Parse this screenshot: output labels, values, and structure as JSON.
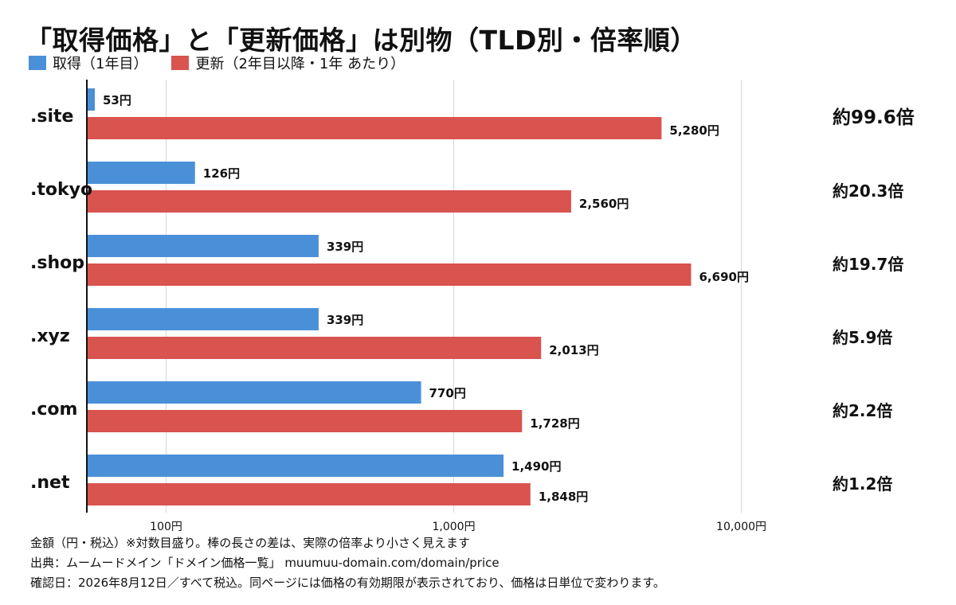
{
  "title": "「取得価格」と「更新価格」は別物（TLD別・倍率順）",
  "legend": {
    "acquire_label": "取得（1年目）",
    "renew_label": "更新（2年目以降・1年 あたり）"
  },
  "colors": {
    "acquire": "#4a90d9",
    "renew": "#d9534f",
    "grid": "#d6d6d6",
    "axis": "#111111"
  },
  "chart_data": {
    "type": "bar",
    "orientation": "horizontal",
    "x_scale": "log",
    "xlim": [
      53,
      20000
    ],
    "categories": [
      ".site",
      ".tokyo",
      ".shop",
      ".xyz",
      ".com",
      ".net"
    ],
    "series": [
      {
        "name": "取得（1年目）",
        "values": [
          53,
          126,
          339,
          339,
          770,
          1490
        ]
      },
      {
        "name": "更新（2年目以降・1年 あたり）",
        "values": [
          5280,
          2560,
          6690,
          2013,
          1728,
          1848
        ]
      }
    ],
    "data_labels": {
      "acquire": [
        "53円",
        "126円",
        "339円",
        "339円",
        "770円",
        "1,490円"
      ],
      "renew": [
        "5,280円",
        "2,560円",
        "6,690円",
        "2,013円",
        "1,728円",
        "1,848円"
      ]
    },
    "ratios": [
      "約99.6倍",
      "約20.3倍",
      "約19.7倍",
      "約5.9倍",
      "約2.2倍",
      "約1.2倍"
    ],
    "x_ticks": [
      {
        "value": 100,
        "label": "100円"
      },
      {
        "value": 1000,
        "label": "1,000円"
      },
      {
        "value": 10000,
        "label": "10,000円"
      }
    ],
    "grid": true,
    "legend_position": "top-left"
  },
  "notes": [
    "金額（円・税込）※対数目盛り。棒の長さの差は、実際の倍率より小さく見えます",
    "出典：ムームードメイン「ドメイン価格一覧」 muumuu-domain.com/domain/price",
    "確認日：2026年8月12日／すべて税込。同ページには価格の有効期限が表示されており、価格は日単位で変わります。"
  ]
}
